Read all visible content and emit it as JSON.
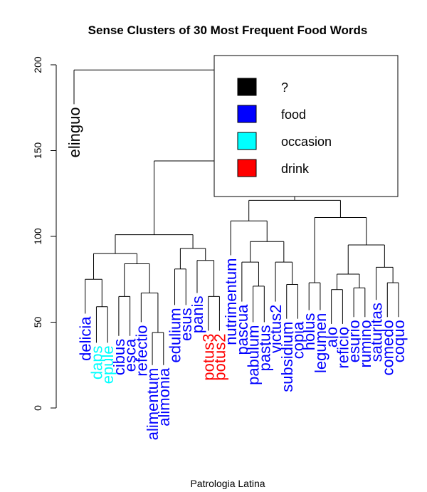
{
  "chart_data": {
    "type": "dendrogram",
    "title": "Sense Clusters of 30 Most Frequent Food Words",
    "xlabel": "Patrologia Latina",
    "ylabel": "",
    "ylim": [
      0,
      200
    ],
    "yticks": [
      0,
      50,
      100,
      150,
      200
    ],
    "legend": {
      "placement": "top-right",
      "entries": [
        {
          "label": "?",
          "color": "#000000"
        },
        {
          "label": "food",
          "color": "#0000FF"
        },
        {
          "label": "occasion",
          "color": "#00FFFF"
        },
        {
          "label": "drink",
          "color": "#FF0000"
        }
      ]
    },
    "leaves": [
      {
        "label": "elinguo",
        "color": "#000000",
        "height": 177
      },
      {
        "label": "delicia",
        "color": "#0000FF",
        "height": 55
      },
      {
        "label": "daps",
        "color": "#00FFFF",
        "height": 38
      },
      {
        "label": "epule",
        "color": "#00FFFF",
        "height": 38
      },
      {
        "label": "cibus",
        "color": "#0000FF",
        "height": 42
      },
      {
        "label": "esca",
        "color": "#0000FF",
        "height": 42
      },
      {
        "label": "refectio",
        "color": "#0000FF",
        "height": 50
      },
      {
        "label": "alimentum",
        "color": "#0000FF",
        "height": 25
      },
      {
        "label": "alimonia",
        "color": "#0000FF",
        "height": 25
      },
      {
        "label": "edulium",
        "color": "#0000FF",
        "height": 60
      },
      {
        "label": "esus",
        "color": "#0000FF",
        "height": 60
      },
      {
        "label": "panis",
        "color": "#0000FF",
        "height": 67
      },
      {
        "label": "potus3",
        "color": "#FF0000",
        "height": 45
      },
      {
        "label": "potus2",
        "color": "#FF0000",
        "height": 45
      },
      {
        "label": "nutrimentum",
        "color": "#0000FF",
        "height": 89
      },
      {
        "label": "pascua",
        "color": "#0000FF",
        "height": 62
      },
      {
        "label": "pabulum",
        "color": "#0000FF",
        "height": 50
      },
      {
        "label": "pastus",
        "color": "#0000FF",
        "height": 50
      },
      {
        "label": "victus2",
        "color": "#0000FF",
        "height": 62
      },
      {
        "label": "subsidium",
        "color": "#0000FF",
        "height": 52
      },
      {
        "label": "copia",
        "color": "#0000FF",
        "height": 52
      },
      {
        "label": "holus",
        "color": "#0000FF",
        "height": 57
      },
      {
        "label": "legumen",
        "color": "#0000FF",
        "height": 57
      },
      {
        "label": "alo",
        "color": "#0000FF",
        "height": 49
      },
      {
        "label": "reficio",
        "color": "#0000FF",
        "height": 49
      },
      {
        "label": "esurio",
        "color": "#0000FF",
        "height": 53
      },
      {
        "label": "rumino",
        "color": "#0000FF",
        "height": 53
      },
      {
        "label": "saturitas",
        "color": "#0000FF",
        "height": 63
      },
      {
        "label": "comedo",
        "color": "#0000FF",
        "height": 53
      },
      {
        "label": "coquo",
        "color": "#0000FF",
        "height": 53
      }
    ],
    "merges": [
      {
        "a": 2,
        "b": 3,
        "height": 59
      },
      {
        "a": 1,
        "b": "m1",
        "height": 75
      },
      {
        "a": 4,
        "b": 5,
        "height": 65
      },
      {
        "a": 7,
        "b": 8,
        "height": 44
      },
      {
        "a": 6,
        "b": "m4",
        "height": 67
      },
      {
        "a": "m3",
        "b": "m5",
        "height": 84
      },
      {
        "a": "m2",
        "b": "m6",
        "height": 90
      },
      {
        "a": 12,
        "b": 13,
        "height": 65
      },
      {
        "a": 11,
        "b": "m8",
        "height": 86
      },
      {
        "a": 9,
        "b": 10,
        "height": 81
      },
      {
        "a": "m10",
        "b": "m9",
        "height": 93
      },
      {
        "a": "m7",
        "b": "m11",
        "height": 101
      },
      {
        "a": 16,
        "b": 17,
        "height": 71
      },
      {
        "a": 15,
        "b": "m13",
        "height": 85
      },
      {
        "a": 19,
        "b": 20,
        "height": 72
      },
      {
        "a": 18,
        "b": "m15",
        "height": 85
      },
      {
        "a": "m14",
        "b": "m16",
        "height": 97
      },
      {
        "a": 14,
        "b": "m17",
        "height": 109
      },
      {
        "a": 21,
        "b": 22,
        "height": 73
      },
      {
        "a": 23,
        "b": 24,
        "height": 69
      },
      {
        "a": 25,
        "b": 26,
        "height": 70
      },
      {
        "a": "m20",
        "b": "m21",
        "height": 78
      },
      {
        "a": 28,
        "b": 29,
        "height": 73
      },
      {
        "a": 27,
        "b": "m23",
        "height": 82
      },
      {
        "a": "m22",
        "b": "m24",
        "height": 95
      },
      {
        "a": "m19",
        "b": "m25",
        "height": 111
      },
      {
        "a": "m18",
        "b": "m26",
        "height": 121
      },
      {
        "a": "m12",
        "b": "m27",
        "height": 144
      },
      {
        "a": 0,
        "b": "m28",
        "height": 197
      }
    ]
  }
}
